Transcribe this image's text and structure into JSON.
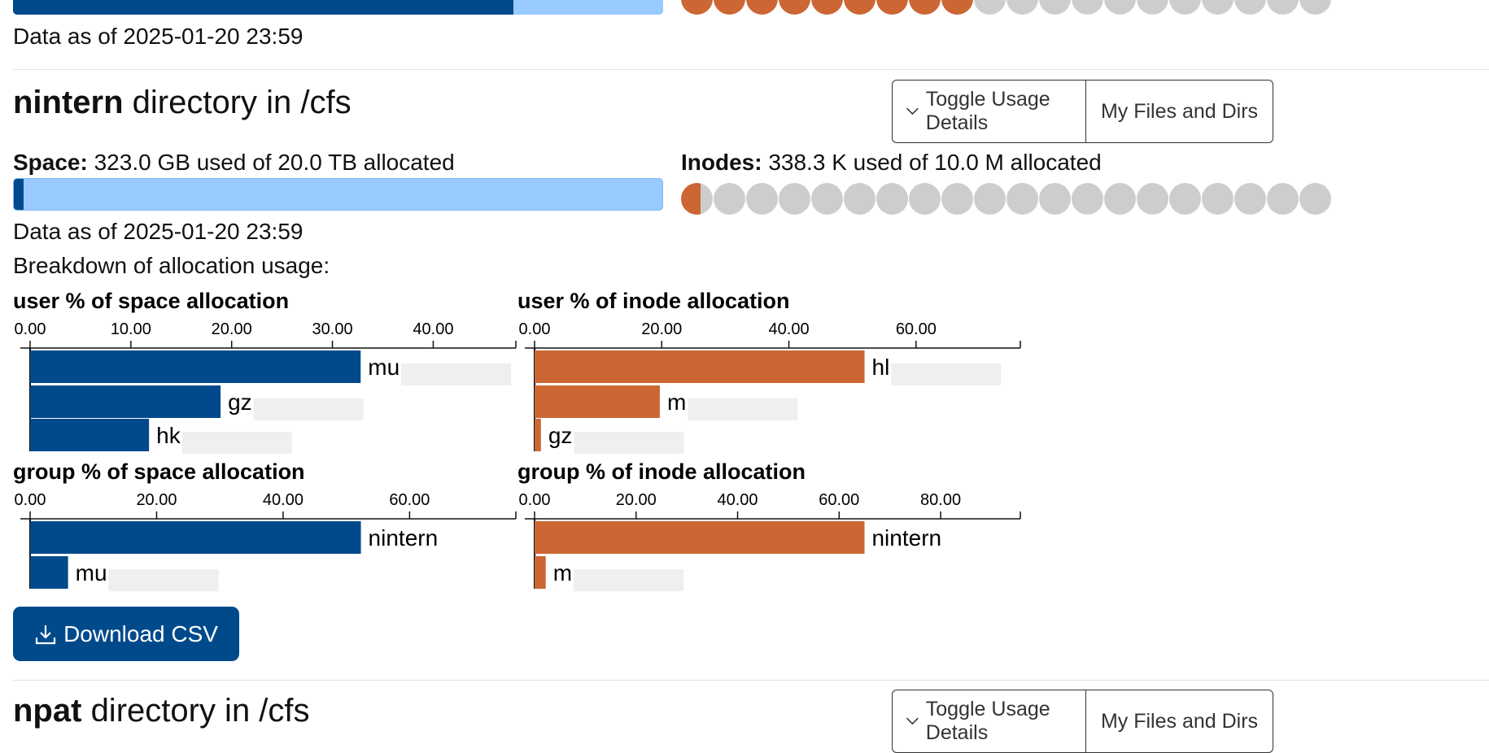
{
  "top_section": {
    "data_as_of": "Data as of 2025-01-20 23:59"
  },
  "section": {
    "name": "nintern",
    "heading_rest": "directory in /cfs",
    "buttons": [
      "Toggle Usage Details",
      "My Files and Dirs"
    ],
    "space_label": "Space:",
    "space_text": "323.0 GB used of 20.0 TB allocated",
    "inodes_label": "Inodes:",
    "inodes_text": "338.3 K used of 10.0 M allocated",
    "data_as_of": "Data as of 2025-01-20 23:59",
    "breakdown": "Breakdown of allocation usage:",
    "download": "Download CSV"
  },
  "next_section": {
    "name": "npat",
    "heading_rest": "directory in /cfs",
    "buttons": [
      "Toggle Usage Details",
      "My Files and Dirs"
    ]
  },
  "chart_data": [
    {
      "type": "bar",
      "orientation": "horizontal",
      "title": "user % of space allocation",
      "color": "#004a8c",
      "categories": [
        "mu",
        "gz",
        "hk"
      ],
      "values": [
        32.8,
        18.9,
        11.8
      ],
      "xlim": [
        0,
        48.2
      ],
      "xticks": [
        {
          "value": 0,
          "label": "0.00"
        },
        {
          "value": 10,
          "label": "10.00"
        },
        {
          "value": 20,
          "label": "20.00"
        },
        {
          "value": 30,
          "label": "30.00"
        },
        {
          "value": 40,
          "label": "40.00"
        }
      ]
    },
    {
      "type": "bar",
      "orientation": "horizontal",
      "title": "user % of inode allocation",
      "color": "#cc6633",
      "categories": [
        "hl",
        "m",
        "gz"
      ],
      "values": [
        51.9,
        19.7,
        1.0
      ],
      "xlim": [
        0,
        76.4
      ],
      "xticks": [
        {
          "value": 0,
          "label": "0.00"
        },
        {
          "value": 20,
          "label": "20.00"
        },
        {
          "value": 40,
          "label": "40.00"
        },
        {
          "value": 60,
          "label": "60.00"
        }
      ]
    },
    {
      "type": "bar",
      "orientation": "horizontal",
      "title": "group % of space allocation",
      "color": "#004a8c",
      "categories": [
        "nintern",
        "mu"
      ],
      "values": [
        52.3,
        6.0
      ],
      "xlim": [
        0,
        76.8
      ],
      "xticks": [
        {
          "value": 0,
          "label": "0.00"
        },
        {
          "value": 20,
          "label": "20.00"
        },
        {
          "value": 40,
          "label": "40.00"
        },
        {
          "value": 60,
          "label": "60.00"
        }
      ]
    },
    {
      "type": "bar",
      "orientation": "horizontal",
      "title": "group % of inode allocation",
      "color": "#cc6633",
      "categories": [
        "nintern",
        "m"
      ],
      "values": [
        65.0,
        2.2
      ],
      "xlim": [
        0,
        95.7
      ],
      "xticks": [
        {
          "value": 0,
          "label": "0.00"
        },
        {
          "value": 20,
          "label": "20.00"
        },
        {
          "value": 40,
          "label": "40.00"
        },
        {
          "value": 60,
          "label": "60.00"
        },
        {
          "value": 80,
          "label": "80.00"
        }
      ]
    }
  ]
}
